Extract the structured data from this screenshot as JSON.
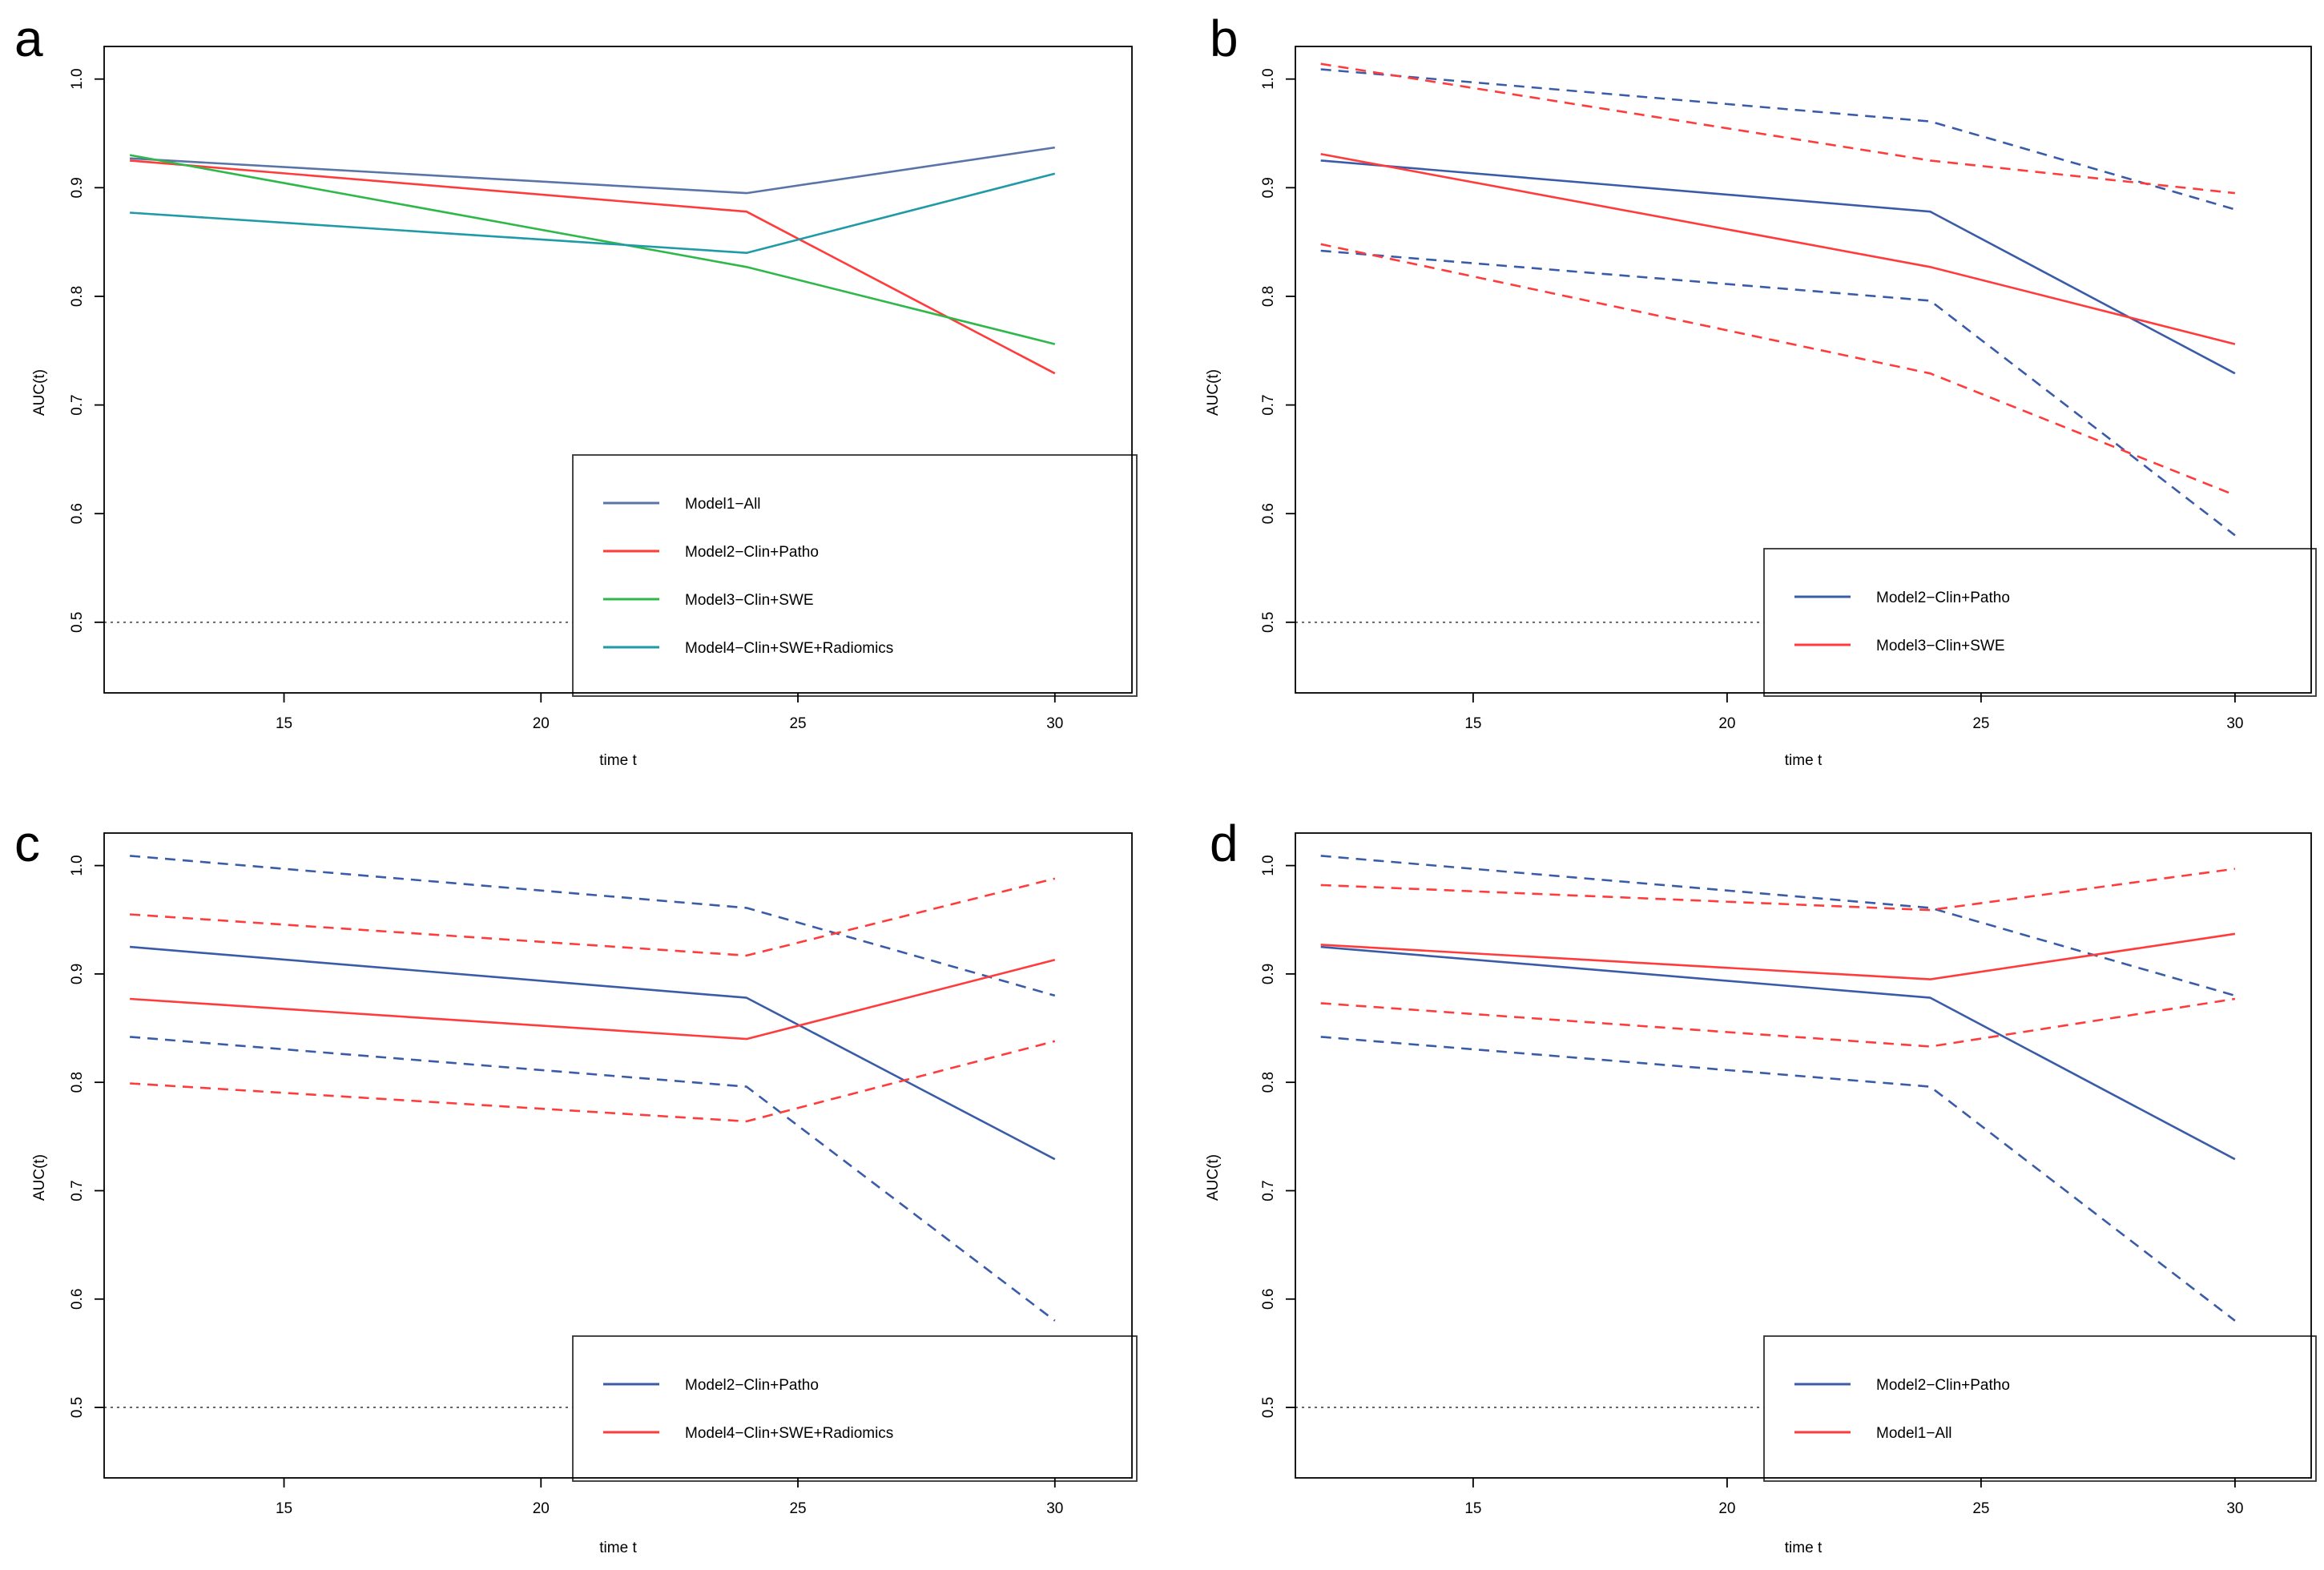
{
  "figure": {
    "panels": [
      "a",
      "b",
      "c",
      "d"
    ],
    "reference_line": {
      "value": 0.5,
      "style": "dotted",
      "color": "#666666"
    }
  },
  "chart_data": [
    {
      "type": "line",
      "panel": "a",
      "title": "",
      "xlabel": "time t",
      "ylabel": "AUC(t)",
      "xlim": [
        11.5,
        31.5
      ],
      "ylim": [
        0.435,
        1.03
      ],
      "xticks": [
        15,
        20,
        25,
        30
      ],
      "yticks": [
        0.5,
        0.6,
        0.7,
        0.8,
        0.9,
        1.0
      ],
      "ytick_labels": [
        "0.5",
        "0.6",
        "0.7",
        "0.8",
        "0.9",
        "1.0"
      ],
      "legend_position": "bottom-right",
      "x": [
        12,
        24,
        30
      ],
      "series": [
        {
          "name": "Model1−All",
          "color": "#5a74a8",
          "dash": "solid",
          "values": [
            0.927,
            0.895,
            0.937
          ],
          "in_legend": true
        },
        {
          "name": "Model2−Clin+Patho",
          "color": "#ff3b3b",
          "dash": "solid",
          "values": [
            0.925,
            0.878,
            0.729
          ],
          "in_legend": true
        },
        {
          "name": "Model3−Clin+SWE",
          "color": "#2fb84a",
          "dash": "solid",
          "values": [
            0.93,
            0.827,
            0.756
          ],
          "in_legend": true
        },
        {
          "name": "Model4−Clin+SWE+Radiomics",
          "color": "#1f9aa6",
          "dash": "solid",
          "values": [
            0.877,
            0.84,
            0.913
          ],
          "in_legend": true
        }
      ]
    },
    {
      "type": "line",
      "panel": "b",
      "title": "",
      "xlabel": "time t",
      "ylabel": "AUC(t)",
      "xlim": [
        11.5,
        31.5
      ],
      "ylim": [
        0.435,
        1.03
      ],
      "xticks": [
        15,
        20,
        25,
        30
      ],
      "yticks": [
        0.5,
        0.6,
        0.7,
        0.8,
        0.9,
        1.0
      ],
      "ytick_labels": [
        "0.5",
        "0.6",
        "0.7",
        "0.8",
        "0.9",
        "1.0"
      ],
      "legend_position": "bottom-right",
      "x": [
        12,
        24,
        30
      ],
      "series": [
        {
          "name": "Model2−Clin+Patho",
          "color": "#3a5ca8",
          "dash": "solid",
          "values": [
            0.925,
            0.878,
            0.729
          ],
          "in_legend": true
        },
        {
          "name": "Model2 upper CI",
          "color": "#3a5ca8",
          "dash": "dashed",
          "values": [
            1.009,
            0.961,
            0.88
          ],
          "in_legend": false
        },
        {
          "name": "Model2 lower CI",
          "color": "#3a5ca8",
          "dash": "dashed",
          "values": [
            0.842,
            0.796,
            0.58
          ],
          "in_legend": false
        },
        {
          "name": "Model3−Clin+SWE",
          "color": "#ff3b3b",
          "dash": "solid",
          "values": [
            0.931,
            0.827,
            0.756
          ],
          "in_legend": true
        },
        {
          "name": "Model3 upper CI",
          "color": "#ff3b3b",
          "dash": "dashed",
          "values": [
            1.014,
            0.925,
            0.895
          ],
          "in_legend": false
        },
        {
          "name": "Model3 lower CI",
          "color": "#ff3b3b",
          "dash": "dashed",
          "values": [
            0.848,
            0.729,
            0.617
          ],
          "in_legend": false
        }
      ]
    },
    {
      "type": "line",
      "panel": "c",
      "title": "",
      "xlabel": "time t",
      "ylabel": "AUC(t)",
      "xlim": [
        11.5,
        31.5
      ],
      "ylim": [
        0.435,
        1.03
      ],
      "xticks": [
        15,
        20,
        25,
        30
      ],
      "yticks": [
        0.5,
        0.6,
        0.7,
        0.8,
        0.9,
        1.0
      ],
      "ytick_labels": [
        "0.5",
        "0.6",
        "0.7",
        "0.8",
        "0.9",
        "1.0"
      ],
      "legend_position": "bottom-right",
      "x": [
        12,
        24,
        30
      ],
      "series": [
        {
          "name": "Model2−Clin+Patho",
          "color": "#3a5ca8",
          "dash": "solid",
          "values": [
            0.925,
            0.878,
            0.729
          ],
          "in_legend": true
        },
        {
          "name": "Model2 upper CI",
          "color": "#3a5ca8",
          "dash": "dashed",
          "values": [
            1.009,
            0.961,
            0.88
          ],
          "in_legend": false
        },
        {
          "name": "Model2 lower CI",
          "color": "#3a5ca8",
          "dash": "dashed",
          "values": [
            0.842,
            0.796,
            0.58
          ],
          "in_legend": false
        },
        {
          "name": "Model4−Clin+SWE+Radiomics",
          "color": "#ff3b3b",
          "dash": "solid",
          "values": [
            0.877,
            0.84,
            0.913
          ],
          "in_legend": true
        },
        {
          "name": "Model4 upper CI",
          "color": "#ff3b3b",
          "dash": "dashed",
          "values": [
            0.955,
            0.917,
            0.988
          ],
          "in_legend": false
        },
        {
          "name": "Model4 lower CI",
          "color": "#ff3b3b",
          "dash": "dashed",
          "values": [
            0.799,
            0.764,
            0.838
          ],
          "in_legend": false
        }
      ]
    },
    {
      "type": "line",
      "panel": "d",
      "title": "",
      "xlabel": "time t",
      "ylabel": "AUC(t)",
      "xlim": [
        11.5,
        31.5
      ],
      "ylim": [
        0.435,
        1.03
      ],
      "xticks": [
        15,
        20,
        25,
        30
      ],
      "yticks": [
        0.5,
        0.6,
        0.7,
        0.8,
        0.9,
        1.0
      ],
      "ytick_labels": [
        "0.5",
        "0.6",
        "0.7",
        "0.8",
        "0.9",
        "1.0"
      ],
      "legend_position": "bottom-right",
      "x": [
        12,
        24,
        30
      ],
      "series": [
        {
          "name": "Model2−Clin+Patho",
          "color": "#3a5ca8",
          "dash": "solid",
          "values": [
            0.925,
            0.878,
            0.729
          ],
          "in_legend": true
        },
        {
          "name": "Model2 upper CI",
          "color": "#3a5ca8",
          "dash": "dashed",
          "values": [
            1.009,
            0.961,
            0.88
          ],
          "in_legend": false
        },
        {
          "name": "Model2 lower CI",
          "color": "#3a5ca8",
          "dash": "dashed",
          "values": [
            0.842,
            0.796,
            0.58
          ],
          "in_legend": false
        },
        {
          "name": "Model1−All",
          "color": "#ff3b3b",
          "dash": "solid",
          "values": [
            0.927,
            0.895,
            0.937
          ],
          "in_legend": true
        },
        {
          "name": "Model1 upper CI",
          "color": "#ff3b3b",
          "dash": "dashed",
          "values": [
            0.982,
            0.959,
            0.997
          ],
          "in_legend": false
        },
        {
          "name": "Model1 lower CI",
          "color": "#ff3b3b",
          "dash": "dashed",
          "values": [
            0.873,
            0.833,
            0.877
          ],
          "in_legend": false
        }
      ]
    }
  ]
}
